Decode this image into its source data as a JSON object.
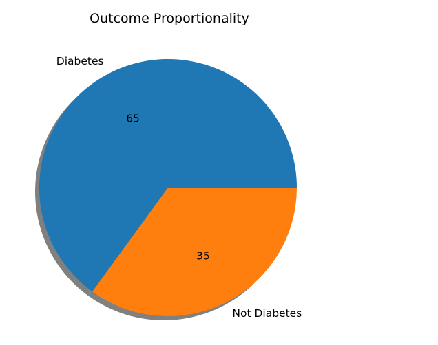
{
  "chart_data": {
    "type": "pie",
    "title": "Outcome Proportionality",
    "slices": [
      {
        "label": "Diabetes",
        "value": 65,
        "value_label": "65",
        "color": "#1f77b4"
      },
      {
        "label": "Not Diabetes",
        "value": 35,
        "value_label": "35",
        "color": "#ff7f0e"
      }
    ],
    "start_angle_deg": 0,
    "direction": "counterclockwise",
    "shadow": true,
    "shadow_color": "#808080"
  }
}
